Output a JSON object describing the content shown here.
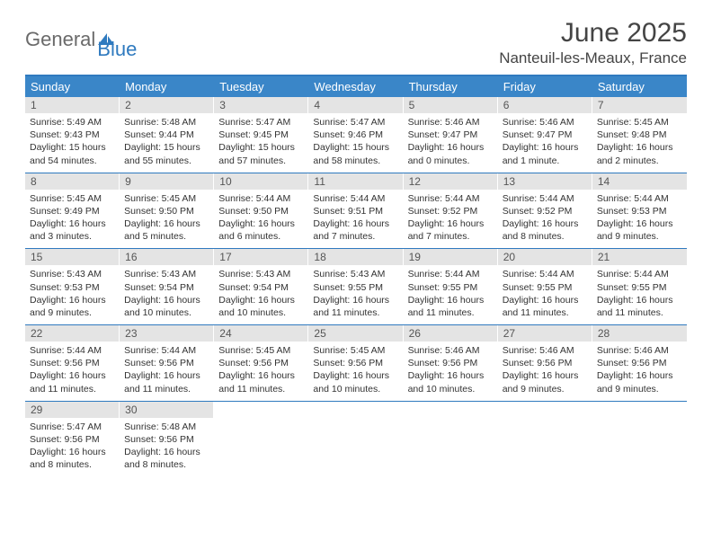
{
  "logo": {
    "part1": "General",
    "part2": "Blue"
  },
  "title": "June 2025",
  "location": "Nanteuil-les-Meaux, France",
  "styling": {
    "accent_color": "#2f7abf",
    "header_bg": "#3a86c8",
    "daynum_bg": "#e4e4e4",
    "text_color": "#333333",
    "page_bg": "#ffffff",
    "title_fontsize": 30,
    "location_fontsize": 17,
    "dayheader_fontsize": 13,
    "info_fontsize": 10.5
  },
  "day_names": [
    "Sunday",
    "Monday",
    "Tuesday",
    "Wednesday",
    "Thursday",
    "Friday",
    "Saturday"
  ],
  "weeks": [
    [
      {
        "num": "1",
        "sunrise": "Sunrise: 5:49 AM",
        "sunset": "Sunset: 9:43 PM",
        "daylight": "Daylight: 15 hours and 54 minutes."
      },
      {
        "num": "2",
        "sunrise": "Sunrise: 5:48 AM",
        "sunset": "Sunset: 9:44 PM",
        "daylight": "Daylight: 15 hours and 55 minutes."
      },
      {
        "num": "3",
        "sunrise": "Sunrise: 5:47 AM",
        "sunset": "Sunset: 9:45 PM",
        "daylight": "Daylight: 15 hours and 57 minutes."
      },
      {
        "num": "4",
        "sunrise": "Sunrise: 5:47 AM",
        "sunset": "Sunset: 9:46 PM",
        "daylight": "Daylight: 15 hours and 58 minutes."
      },
      {
        "num": "5",
        "sunrise": "Sunrise: 5:46 AM",
        "sunset": "Sunset: 9:47 PM",
        "daylight": "Daylight: 16 hours and 0 minutes."
      },
      {
        "num": "6",
        "sunrise": "Sunrise: 5:46 AM",
        "sunset": "Sunset: 9:47 PM",
        "daylight": "Daylight: 16 hours and 1 minute."
      },
      {
        "num": "7",
        "sunrise": "Sunrise: 5:45 AM",
        "sunset": "Sunset: 9:48 PM",
        "daylight": "Daylight: 16 hours and 2 minutes."
      }
    ],
    [
      {
        "num": "8",
        "sunrise": "Sunrise: 5:45 AM",
        "sunset": "Sunset: 9:49 PM",
        "daylight": "Daylight: 16 hours and 3 minutes."
      },
      {
        "num": "9",
        "sunrise": "Sunrise: 5:45 AM",
        "sunset": "Sunset: 9:50 PM",
        "daylight": "Daylight: 16 hours and 5 minutes."
      },
      {
        "num": "10",
        "sunrise": "Sunrise: 5:44 AM",
        "sunset": "Sunset: 9:50 PM",
        "daylight": "Daylight: 16 hours and 6 minutes."
      },
      {
        "num": "11",
        "sunrise": "Sunrise: 5:44 AM",
        "sunset": "Sunset: 9:51 PM",
        "daylight": "Daylight: 16 hours and 7 minutes."
      },
      {
        "num": "12",
        "sunrise": "Sunrise: 5:44 AM",
        "sunset": "Sunset: 9:52 PM",
        "daylight": "Daylight: 16 hours and 7 minutes."
      },
      {
        "num": "13",
        "sunrise": "Sunrise: 5:44 AM",
        "sunset": "Sunset: 9:52 PM",
        "daylight": "Daylight: 16 hours and 8 minutes."
      },
      {
        "num": "14",
        "sunrise": "Sunrise: 5:44 AM",
        "sunset": "Sunset: 9:53 PM",
        "daylight": "Daylight: 16 hours and 9 minutes."
      }
    ],
    [
      {
        "num": "15",
        "sunrise": "Sunrise: 5:43 AM",
        "sunset": "Sunset: 9:53 PM",
        "daylight": "Daylight: 16 hours and 9 minutes."
      },
      {
        "num": "16",
        "sunrise": "Sunrise: 5:43 AM",
        "sunset": "Sunset: 9:54 PM",
        "daylight": "Daylight: 16 hours and 10 minutes."
      },
      {
        "num": "17",
        "sunrise": "Sunrise: 5:43 AM",
        "sunset": "Sunset: 9:54 PM",
        "daylight": "Daylight: 16 hours and 10 minutes."
      },
      {
        "num": "18",
        "sunrise": "Sunrise: 5:43 AM",
        "sunset": "Sunset: 9:55 PM",
        "daylight": "Daylight: 16 hours and 11 minutes."
      },
      {
        "num": "19",
        "sunrise": "Sunrise: 5:44 AM",
        "sunset": "Sunset: 9:55 PM",
        "daylight": "Daylight: 16 hours and 11 minutes."
      },
      {
        "num": "20",
        "sunrise": "Sunrise: 5:44 AM",
        "sunset": "Sunset: 9:55 PM",
        "daylight": "Daylight: 16 hours and 11 minutes."
      },
      {
        "num": "21",
        "sunrise": "Sunrise: 5:44 AM",
        "sunset": "Sunset: 9:55 PM",
        "daylight": "Daylight: 16 hours and 11 minutes."
      }
    ],
    [
      {
        "num": "22",
        "sunrise": "Sunrise: 5:44 AM",
        "sunset": "Sunset: 9:56 PM",
        "daylight": "Daylight: 16 hours and 11 minutes."
      },
      {
        "num": "23",
        "sunrise": "Sunrise: 5:44 AM",
        "sunset": "Sunset: 9:56 PM",
        "daylight": "Daylight: 16 hours and 11 minutes."
      },
      {
        "num": "24",
        "sunrise": "Sunrise: 5:45 AM",
        "sunset": "Sunset: 9:56 PM",
        "daylight": "Daylight: 16 hours and 11 minutes."
      },
      {
        "num": "25",
        "sunrise": "Sunrise: 5:45 AM",
        "sunset": "Sunset: 9:56 PM",
        "daylight": "Daylight: 16 hours and 10 minutes."
      },
      {
        "num": "26",
        "sunrise": "Sunrise: 5:46 AM",
        "sunset": "Sunset: 9:56 PM",
        "daylight": "Daylight: 16 hours and 10 minutes."
      },
      {
        "num": "27",
        "sunrise": "Sunrise: 5:46 AM",
        "sunset": "Sunset: 9:56 PM",
        "daylight": "Daylight: 16 hours and 9 minutes."
      },
      {
        "num": "28",
        "sunrise": "Sunrise: 5:46 AM",
        "sunset": "Sunset: 9:56 PM",
        "daylight": "Daylight: 16 hours and 9 minutes."
      }
    ],
    [
      {
        "num": "29",
        "sunrise": "Sunrise: 5:47 AM",
        "sunset": "Sunset: 9:56 PM",
        "daylight": "Daylight: 16 hours and 8 minutes."
      },
      {
        "num": "30",
        "sunrise": "Sunrise: 5:48 AM",
        "sunset": "Sunset: 9:56 PM",
        "daylight": "Daylight: 16 hours and 8 minutes."
      },
      {
        "empty": true
      },
      {
        "empty": true
      },
      {
        "empty": true
      },
      {
        "empty": true
      },
      {
        "empty": true
      }
    ]
  ]
}
